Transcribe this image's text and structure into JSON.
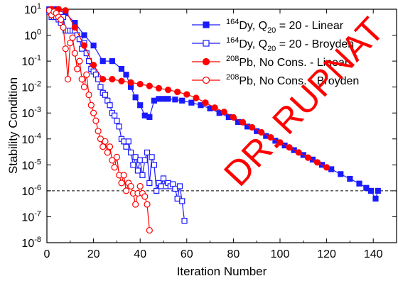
{
  "chart_data": {
    "type": "line",
    "xlabel": "Iteration Number",
    "ylabel": "Stability Condition",
    "xlim": [
      0,
      150
    ],
    "ylim_log10": [
      -8,
      1
    ],
    "yscale": "log",
    "grid": false,
    "legend_position": "top-right",
    "x_ticks": [
      0,
      20,
      40,
      60,
      80,
      100,
      120,
      140
    ],
    "y_ticks": [
      {
        "exp": 1,
        "mantissa": "10",
        "sup": "1"
      },
      {
        "exp": 0,
        "mantissa": "10",
        "sup": "0"
      },
      {
        "exp": -1,
        "mantissa": "10",
        "sup": "-1"
      },
      {
        "exp": -2,
        "mantissa": "10",
        "sup": "-2"
      },
      {
        "exp": -3,
        "mantissa": "10",
        "sup": "-3"
      },
      {
        "exp": -4,
        "mantissa": "10",
        "sup": "-4"
      },
      {
        "exp": -5,
        "mantissa": "10",
        "sup": "-5"
      },
      {
        "exp": -6,
        "mantissa": "10",
        "sup": "-6"
      },
      {
        "exp": -7,
        "mantissa": "10",
        "sup": "-7"
      },
      {
        "exp": -8,
        "mantissa": "10",
        "sup": "-8"
      }
    ],
    "threshold": 1e-06,
    "series": [
      {
        "name": "164Dy, Q20 = 20 - Linear",
        "label_parts": {
          "sup": "164",
          "base": "Dy, Q",
          "sub": "20",
          "tail": " = 20 - Linear"
        },
        "color": "#1a1aff",
        "marker": "square",
        "filled": true,
        "points": [
          [
            1,
            10
          ],
          [
            4,
            10
          ],
          [
            8,
            7
          ],
          [
            12,
            3
          ],
          [
            16,
            1
          ],
          [
            20,
            0.4
          ],
          [
            24,
            0.1
          ],
          [
            28,
            0.1
          ],
          [
            32,
            0.05
          ],
          [
            34,
            0.03
          ],
          [
            36,
            0.01
          ],
          [
            38,
            0.004
          ],
          [
            40,
            0.002
          ],
          [
            42,
            0.0008
          ],
          [
            44,
            0.0007
          ],
          [
            46,
            0.003
          ],
          [
            48,
            0.0035
          ],
          [
            50,
            0.0035
          ],
          [
            52,
            0.0035
          ],
          [
            55,
            0.0033
          ],
          [
            58,
            0.003
          ],
          [
            62,
            0.0025
          ],
          [
            66,
            0.002
          ],
          [
            70,
            0.0015
          ],
          [
            74,
            0.001
          ],
          [
            78,
            0.0007
          ],
          [
            82,
            0.00045
          ],
          [
            86,
            0.0003
          ],
          [
            90,
            0.0002
          ],
          [
            94,
            0.00013
          ],
          [
            98,
            8.5e-05
          ],
          [
            102,
            5.6e-05
          ],
          [
            106,
            3.7e-05
          ],
          [
            110,
            2.4e-05
          ],
          [
            114,
            1.6e-05
          ],
          [
            118,
            1e-05
          ],
          [
            122,
            6.8e-06
          ],
          [
            126,
            4.4e-06
          ],
          [
            130,
            2.9e-06
          ],
          [
            134,
            1.9e-06
          ],
          [
            137,
            1.3e-06
          ],
          [
            139,
            1e-06
          ],
          [
            141,
            5e-07
          ],
          [
            142,
            1e-06
          ]
        ]
      },
      {
        "name": "164Dy, Q20 = 20 - Broyden",
        "label_parts": {
          "sup": "164",
          "base": "Dy, Q",
          "sub": "20",
          "tail": " = 20 - Broyden"
        },
        "color": "#1a1aff",
        "marker": "square",
        "filled": false,
        "points": [
          [
            1,
            8
          ],
          [
            2,
            5
          ],
          [
            3,
            5
          ],
          [
            4,
            5
          ],
          [
            5,
            4
          ],
          [
            6,
            3
          ],
          [
            7,
            5
          ],
          [
            8,
            1.5
          ],
          [
            9,
            1.5
          ],
          [
            10,
            1.5
          ],
          [
            11,
            1.5
          ],
          [
            12,
            1.5
          ],
          [
            13,
            1
          ],
          [
            14,
            0.7
          ],
          [
            15,
            0.3
          ],
          [
            16,
            0.5
          ],
          [
            17,
            0.2
          ],
          [
            18,
            0.1
          ],
          [
            19,
            0.05
          ],
          [
            20,
            0.04
          ],
          [
            21,
            0.03
          ],
          [
            22,
            0.02
          ],
          [
            23,
            0.01
          ],
          [
            24,
            0.006
          ],
          [
            25,
            0.005
          ],
          [
            26,
            0.003
          ],
          [
            27,
            0.002
          ],
          [
            28,
            0.001
          ],
          [
            29,
            0.0008
          ],
          [
            30,
            0.0005
          ],
          [
            31,
            0.0003
          ],
          [
            32,
            0.0001
          ],
          [
            33,
            8e-05
          ],
          [
            34,
            5e-05
          ],
          [
            35,
            8e-05
          ],
          [
            36,
            3e-05
          ],
          [
            37,
            1e-05
          ],
          [
            38,
            2e-05
          ],
          [
            39,
            6e-06
          ],
          [
            40,
            1.5e-05
          ],
          [
            41,
            4e-06
          ],
          [
            42,
            1.5e-05
          ],
          [
            43,
            3e-05
          ],
          [
            44,
            2e-06
          ],
          [
            45,
            2e-05
          ],
          [
            46,
            1e-05
          ],
          [
            47,
            1e-06
          ],
          [
            48,
            2e-06
          ],
          [
            49,
            1.5e-06
          ],
          [
            50,
            3e-06
          ],
          [
            51,
            1.5e-06
          ],
          [
            52,
            2e-06
          ],
          [
            53,
            1.5e-06
          ],
          [
            54,
            1.8e-06
          ],
          [
            55,
            1.2e-06
          ],
          [
            56,
            5e-07
          ],
          [
            57,
            1.5e-06
          ],
          [
            58,
            4e-07
          ],
          [
            59,
            7e-08
          ]
        ]
      },
      {
        "name": "208Pb, No Cons. - Linear",
        "label_parts": {
          "sup": "208",
          "base": "Pb, No Cons. - Linear",
          "sub": "",
          "tail": ""
        },
        "color": "#ff0000",
        "marker": "circle",
        "filled": true,
        "points": [
          [
            2,
            10
          ],
          [
            5,
            10
          ],
          [
            8,
            9
          ],
          [
            12,
            2
          ],
          [
            16,
            0.4
          ],
          [
            20,
            0.07
          ],
          [
            24,
            0.02
          ],
          [
            28,
            0.02
          ],
          [
            32,
            0.017
          ],
          [
            36,
            0.015
          ],
          [
            40,
            0.013
          ],
          [
            44,
            0.011
          ],
          [
            48,
            0.009
          ],
          [
            52,
            0.0078
          ],
          [
            56,
            0.0065
          ],
          [
            60,
            0.0052
          ],
          [
            64,
            0.0038
          ],
          [
            68,
            0.0025
          ],
          [
            72,
            0.0016
          ],
          [
            76,
            0.0011
          ],
          [
            80,
            0.00068
          ],
          [
            84,
            0.00044
          ],
          [
            88,
            0.00028
          ],
          [
            92,
            0.00018
          ],
          [
            96,
            0.000115
          ],
          [
            100,
            7.3e-05
          ],
          [
            104,
            4.7e-05
          ],
          [
            108,
            3e-05
          ],
          [
            112,
            1.9e-05
          ],
          [
            116,
            1.25e-05
          ],
          [
            120,
            8e-06
          ]
        ]
      },
      {
        "name": "208Pb, No Cons. - Broyden",
        "label_parts": {
          "sup": "208",
          "base": "Pb, No Cons. - Broyden",
          "sub": "",
          "tail": ""
        },
        "color": "#ff0000",
        "marker": "circle",
        "filled": false,
        "points": [
          [
            1,
            9
          ],
          [
            2,
            6
          ],
          [
            3,
            8
          ],
          [
            4,
            7
          ],
          [
            5,
            5
          ],
          [
            6,
            4
          ],
          [
            7,
            2
          ],
          [
            8,
            0.3
          ],
          [
            9,
            0.02
          ],
          [
            10,
            0.5
          ],
          [
            11,
            0.8
          ],
          [
            12,
            0.2
          ],
          [
            13,
            0.05
          ],
          [
            14,
            0.1
          ],
          [
            15,
            0.02
          ],
          [
            16,
            0.01
          ],
          [
            17,
            0.03
          ],
          [
            18,
            0.005
          ],
          [
            19,
            0.002
          ],
          [
            20,
            0.001
          ],
          [
            21,
            0.0005
          ],
          [
            22,
            0.0002
          ],
          [
            23,
            0.0001
          ],
          [
            24,
            5e-05
          ],
          [
            25,
            8e-05
          ],
          [
            26,
            3e-05
          ],
          [
            27,
            5e-05
          ],
          [
            28,
            1.5e-05
          ],
          [
            29,
            8e-06
          ],
          [
            30,
            2e-05
          ],
          [
            31,
            4e-06
          ],
          [
            32,
            2e-06
          ],
          [
            33,
            4e-06
          ],
          [
            34,
            1e-06
          ],
          [
            35,
            2e-06
          ],
          [
            36,
            1.5e-06
          ],
          [
            37,
            8e-07
          ],
          [
            38,
            3e-07
          ],
          [
            39,
            8e-07
          ],
          [
            40,
            1.5e-06
          ],
          [
            41,
            8e-07
          ],
          [
            42,
            6e-07
          ],
          [
            43,
            3e-07
          ],
          [
            44,
            3e-08
          ]
        ]
      }
    ],
    "watermark": "DR. RUPNAT"
  }
}
